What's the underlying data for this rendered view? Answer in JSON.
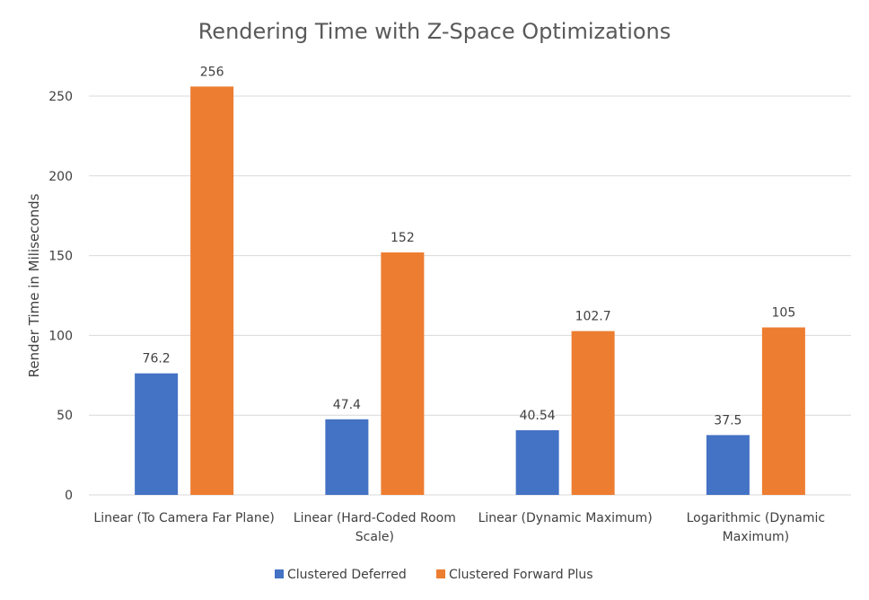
{
  "chart_data": {
    "type": "bar",
    "title": "Rendering Time with Z-Space Optimizations",
    "xlabel": "",
    "ylabel": "Render Time in Miliseconds",
    "ylim": [
      0,
      250
    ],
    "yticks": [
      0,
      50,
      100,
      150,
      200,
      250
    ],
    "grid": true,
    "legend_position": "bottom",
    "categories": [
      [
        "Linear (To Camera Far Plane)"
      ],
      [
        "Linear (Hard-Coded Room",
        "Scale)"
      ],
      [
        "Linear (Dynamic Maximum)"
      ],
      [
        "Logarithmic (Dynamic",
        "Maximum)"
      ]
    ],
    "series": [
      {
        "name": "Clustered Deferred",
        "color": "#4472c4",
        "values": [
          76.2,
          47.4,
          40.54,
          37.5
        ]
      },
      {
        "name": "Clustered Forward Plus",
        "color": "#ed7d31",
        "values": [
          256,
          152,
          102.7,
          105
        ]
      }
    ]
  }
}
